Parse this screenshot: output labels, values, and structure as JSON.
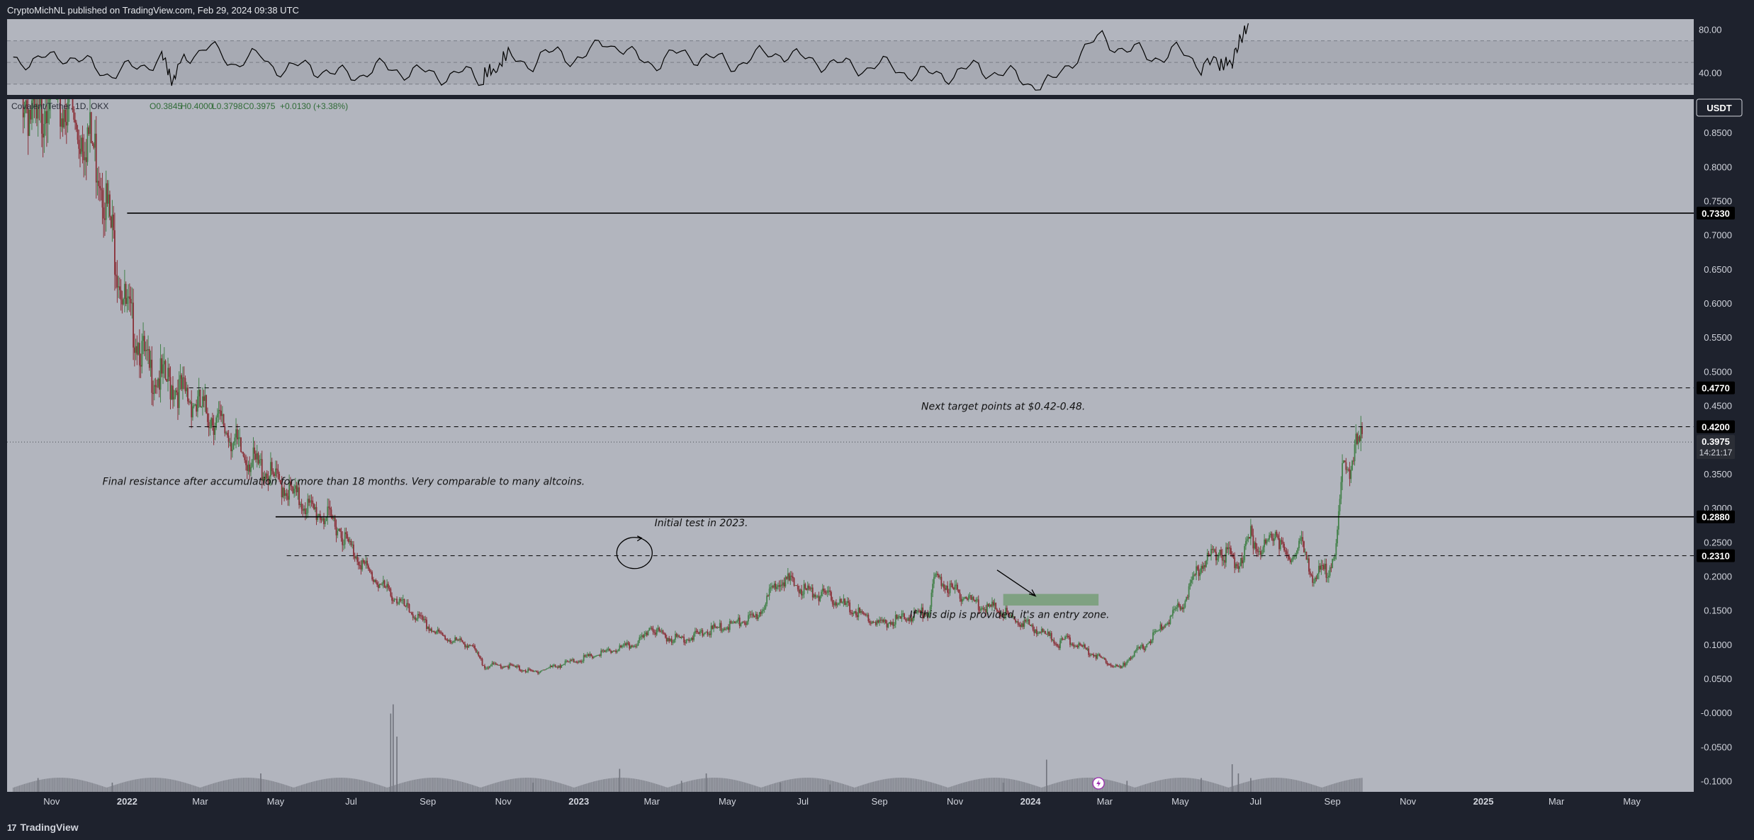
{
  "header": {
    "publish_text": "CryptoMichNL published on TradingView.com, Feb 29, 2024 09:38 UTC"
  },
  "footer": {
    "brand": "TradingView",
    "logo_glyph": "17"
  },
  "colors": {
    "background": "#b2b5be",
    "frame": "#1e222d",
    "up_candle": "#43814a",
    "down_candle": "#8a3038",
    "line": "#000000",
    "zone": "#7fa182"
  },
  "chart_data": [
    {
      "type": "line",
      "name": "rsi",
      "y_ticks": [
        "80.00",
        "40.00"
      ],
      "ylim": [
        20,
        90
      ],
      "band": [
        30,
        70
      ],
      "x_unit": "days since 2021-10-01 (date axis)",
      "x": [
        0,
        20,
        40,
        60,
        80,
        100,
        120,
        130,
        140,
        160,
        180,
        200,
        220,
        240,
        260,
        280,
        300,
        320,
        340,
        360,
        380,
        390,
        400,
        420,
        440,
        460,
        480,
        500,
        520,
        540,
        560,
        580,
        600,
        620,
        640,
        660,
        680,
        700,
        720,
        740,
        760,
        780,
        800,
        820,
        840,
        860,
        880,
        900,
        920,
        940,
        960,
        975,
        985,
        990,
        1000
      ],
      "values": [
        55,
        50,
        58,
        48,
        40,
        45,
        55,
        35,
        58,
        62,
        50,
        55,
        42,
        48,
        38,
        40,
        45,
        42,
        38,
        40,
        35,
        45,
        55,
        50,
        60,
        52,
        72,
        55,
        50,
        58,
        55,
        48,
        55,
        60,
        52,
        50,
        45,
        48,
        42,
        38,
        40,
        45,
        40,
        32,
        30,
        58,
        72,
        62,
        55,
        60,
        48,
        52,
        45,
        72,
        80
      ]
    },
    {
      "type": "candlestick",
      "name": "price",
      "symbol_line": {
        "symbol": "Covalent/Tether, 1D, OKX",
        "open": "O0.3845",
        "high": "H0.4000",
        "low": "L0.3798",
        "close": "C0.3975",
        "change": "+0.0130 (+3.38%)"
      },
      "currency_badge": "USDT",
      "ylim": [
        -0.115,
        0.9
      ],
      "y_ticks": [
        "0.8500",
        "0.8000",
        "0.7500",
        "0.7000",
        "0.6500",
        "0.6000",
        "0.5500",
        "0.5000",
        "0.4500",
        "0.4000",
        "0.3500",
        "0.3000",
        "0.2500",
        "0.2000",
        "0.1500",
        "0.1000",
        "0.0500",
        "-0.0000",
        "-0.0500",
        "-0.1000"
      ],
      "x_ticks": [
        "Nov",
        "2022",
        "Mar",
        "May",
        "Jul",
        "Sep",
        "Nov",
        "2023",
        "Mar",
        "May",
        "Jul",
        "Sep",
        "Nov",
        "2024",
        "Mar",
        "May",
        "Jul",
        "Sep",
        "Nov",
        "2025",
        "Mar",
        "May"
      ],
      "x_tick_dates": [
        "2021-11-01",
        "2022-01-01",
        "2022-03-01",
        "2022-05-01",
        "2022-07-01",
        "2022-09-01",
        "2022-11-01",
        "2023-01-01",
        "2023-03-01",
        "2023-05-01",
        "2023-07-01",
        "2023-09-01",
        "2023-11-01",
        "2024-01-01",
        "2024-03-01",
        "2024-05-01",
        "2024-07-01",
        "2024-09-01",
        "2024-11-01",
        "2025-01-01",
        "2025-03-01",
        "2025-05-01"
      ],
      "x_range": [
        "2021-09-26",
        "2025-06-20"
      ],
      "price_path": {
        "x": [
          0,
          10,
          20,
          30,
          35,
          40,
          45,
          50,
          60,
          70,
          78,
          85,
          90,
          100,
          110,
          130,
          150,
          170,
          185,
          200,
          220,
          240,
          260,
          270,
          290,
          320,
          340,
          350,
          370,
          380,
          400,
          420,
          440,
          460,
          480,
          500,
          510,
          515,
          520,
          530,
          545,
          560,
          580,
          600,
          620,
          640,
          660,
          680,
          700,
          720,
          740,
          745,
          760,
          780,
          800,
          805,
          820,
          830,
          840,
          845,
          850,
          860,
          870,
          880,
          890,
          895,
          900,
          915,
          930,
          945,
          960,
          975,
          990,
          1000,
          1010,
          1020,
          1030,
          1040,
          1050,
          1062,
          1069,
          1075,
          1080,
          1085,
          1090
        ],
        "values": [
          0.95,
          0.9,
          0.85,
          0.95,
          0.9,
          0.88,
          0.92,
          0.85,
          0.85,
          0.8,
          0.72,
          0.65,
          0.6,
          0.55,
          0.5,
          0.48,
          0.45,
          0.42,
          0.38,
          0.36,
          0.33,
          0.3,
          0.28,
          0.25,
          0.2,
          0.15,
          0.12,
          0.11,
          0.1,
          0.07,
          0.07,
          0.06,
          0.07,
          0.08,
          0.09,
          0.1,
          0.11,
          0.13,
          0.12,
          0.11,
          0.11,
          0.12,
          0.13,
          0.14,
          0.2,
          0.18,
          0.17,
          0.15,
          0.13,
          0.14,
          0.15,
          0.2,
          0.18,
          0.16,
          0.15,
          0.14,
          0.13,
          0.12,
          0.11,
          0.1,
          0.11,
          0.1,
          0.09,
          0.08,
          0.07,
          0.065,
          0.08,
          0.1,
          0.13,
          0.16,
          0.22,
          0.24,
          0.22,
          0.26,
          0.24,
          0.27,
          0.22,
          0.25,
          0.2,
          0.21,
          0.24,
          0.37,
          0.36,
          0.39,
          0.4
        ]
      },
      "levels": [
        {
          "value": 0.733,
          "label": "0.7330",
          "style": "solid"
        },
        {
          "value": 0.477,
          "label": "0.4770",
          "style": "dashed"
        },
        {
          "value": 0.42,
          "label": "0.4200",
          "style": "dashed"
        },
        {
          "value": 0.288,
          "label": "0.2880",
          "style": "solid"
        },
        {
          "value": 0.231,
          "label": "0.2310",
          "style": "dashed"
        }
      ],
      "last_price": {
        "value": 0.3975,
        "label": "0.3975",
        "countdown": "14:21:17"
      },
      "entry_zone": {
        "from_date": "2023-12-10",
        "to_date": "2024-02-25",
        "low": 0.158,
        "high": 0.175
      },
      "annotations": [
        {
          "text": "Next target points at $0.42-0.48.",
          "date": "2023-12-10",
          "value": 0.445
        },
        {
          "text": "Final resistance after accumulation for more than 18 months. Very comparable to many altcoins.",
          "date": "2022-06-25",
          "value": 0.335
        },
        {
          "text": "Initial test in 2023.",
          "date": "2023-04-10",
          "value": 0.274
        },
        {
          "text": "If this dip is provided, it's an entry zone.",
          "date": "2023-12-15",
          "value": 0.14
        }
      ]
    },
    {
      "type": "bar",
      "name": "volume",
      "x_unit": "days since 2021-10-01 (date axis)",
      "x": [
        20,
        80,
        200,
        305,
        307,
        310,
        420,
        490,
        540,
        560,
        620,
        660,
        800,
        835,
        900,
        960,
        985,
        990,
        1000
      ],
      "values": [
        0.15,
        0.1,
        0.2,
        0.85,
        0.95,
        0.6,
        0.1,
        0.25,
        0.12,
        0.2,
        0.1,
        0.08,
        0.1,
        0.35,
        0.12,
        0.15,
        0.3,
        0.2,
        0.15
      ]
    }
  ]
}
